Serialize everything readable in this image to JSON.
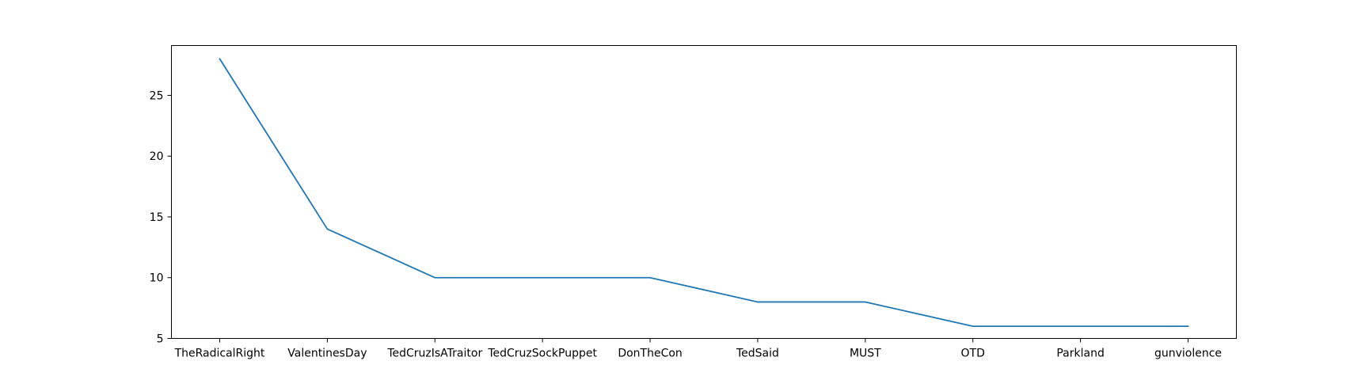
{
  "chart_data": {
    "type": "line",
    "title": "",
    "xlabel": "",
    "ylabel": "",
    "categories": [
      "TheRadicalRight",
      "ValentinesDay",
      "TedCruzIsATraitor",
      "TedCruzSockPuppet",
      "DonTheCon",
      "TedSaid",
      "MUST",
      "OTD",
      "Parkland",
      "gunviolence"
    ],
    "series": [
      {
        "values": [
          28,
          14,
          10,
          10,
          10,
          8,
          8,
          6,
          6,
          6
        ],
        "color": "#1f77b4"
      }
    ],
    "ylim": [
      5,
      29.1
    ],
    "yticks": [
      5,
      10,
      15,
      20,
      25
    ],
    "grid": false,
    "legend": "none"
  }
}
